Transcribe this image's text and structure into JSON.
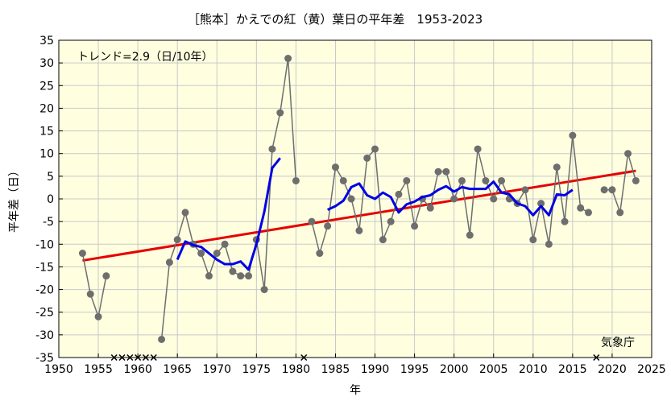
{
  "chart_data": {
    "type": "line",
    "title": "［熊本］かえでの紅（黄）葉日の平年差　1953-2023",
    "xlabel": "年",
    "ylabel": "平年差（日）",
    "xlim": [
      1950,
      2025
    ],
    "ylim": [
      -35,
      35
    ],
    "x_ticks": [
      1950,
      1955,
      1960,
      1965,
      1970,
      1975,
      1980,
      1985,
      1990,
      1995,
      2000,
      2005,
      2010,
      2015,
      2020,
      2025
    ],
    "y_ticks": [
      -35,
      -30,
      -25,
      -20,
      -15,
      -10,
      -5,
      0,
      5,
      10,
      15,
      20,
      25,
      30,
      35
    ],
    "grid": true,
    "annotations": {
      "trend_text": "トレンド=2.9（日/10年）",
      "source_text": "気象庁"
    },
    "colors": {
      "plot_bg": "#ffffe0",
      "grid": "#c8c8c8",
      "observed": "#6e6e6e",
      "moving_average": "#0000e6",
      "trend": "#e60000",
      "missing_marker": "#000000"
    },
    "series": [
      {
        "role": "observed",
        "points": [
          [
            1953,
            -12
          ],
          [
            1954,
            -21
          ],
          [
            1955,
            -26
          ],
          [
            1956,
            -17
          ],
          [
            1963,
            -31
          ],
          [
            1964,
            -14
          ],
          [
            1965,
            -9
          ],
          [
            1966,
            -3
          ],
          [
            1967,
            -10
          ],
          [
            1968,
            -12
          ],
          [
            1969,
            -17
          ],
          [
            1970,
            -12
          ],
          [
            1971,
            -10
          ],
          [
            1972,
            -16
          ],
          [
            1973,
            -17
          ],
          [
            1974,
            -17
          ],
          [
            1975,
            -9
          ],
          [
            1976,
            -20
          ],
          [
            1977,
            11
          ],
          [
            1978,
            19
          ],
          [
            1979,
            31
          ],
          [
            1980,
            4
          ],
          [
            1982,
            -5
          ],
          [
            1983,
            -12
          ],
          [
            1984,
            -6
          ],
          [
            1985,
            7
          ],
          [
            1986,
            4
          ],
          [
            1987,
            0
          ],
          [
            1988,
            -7
          ],
          [
            1989,
            9
          ],
          [
            1990,
            11
          ],
          [
            1991,
            -9
          ],
          [
            1992,
            -5
          ],
          [
            1993,
            1
          ],
          [
            1994,
            4
          ],
          [
            1995,
            -6
          ],
          [
            1996,
            0
          ],
          [
            1997,
            -2
          ],
          [
            1998,
            6
          ],
          [
            1999,
            6
          ],
          [
            2000,
            0
          ],
          [
            2001,
            4
          ],
          [
            2002,
            -8
          ],
          [
            2003,
            11
          ],
          [
            2004,
            4
          ],
          [
            2005,
            0
          ],
          [
            2006,
            4
          ],
          [
            2007,
            0
          ],
          [
            2008,
            -1
          ],
          [
            2009,
            2
          ],
          [
            2010,
            -9
          ],
          [
            2011,
            -1
          ],
          [
            2012,
            -10
          ],
          [
            2013,
            7
          ],
          [
            2014,
            -5
          ],
          [
            2015,
            14
          ],
          [
            2016,
            -2
          ],
          [
            2017,
            -3
          ],
          [
            2019,
            2
          ],
          [
            2020,
            2
          ],
          [
            2021,
            -3
          ],
          [
            2022,
            10
          ],
          [
            2023,
            4
          ]
        ]
      },
      {
        "role": "moving_average",
        "segments": [
          [
            [
              1965,
              -13.4
            ],
            [
              1966,
              -9.4
            ],
            [
              1967,
              -10.2
            ],
            [
              1968,
              -10.6
            ],
            [
              1969,
              -12.0
            ],
            [
              1970,
              -13.4
            ],
            [
              1971,
              -14.4
            ],
            [
              1972,
              -14.4
            ],
            [
              1973,
              -13.8
            ],
            [
              1974,
              -15.6
            ],
            [
              1975,
              -10.0
            ],
            [
              1976,
              -2.8
            ],
            [
              1977,
              6.8
            ],
            [
              1978,
              9.0
            ]
          ],
          [
            [
              1984,
              -2.4
            ],
            [
              1985,
              -1.6
            ],
            [
              1986,
              -0.4
            ],
            [
              1987,
              2.6
            ],
            [
              1988,
              3.4
            ],
            [
              1989,
              0.8
            ],
            [
              1990,
              0.0
            ],
            [
              1991,
              1.4
            ],
            [
              1992,
              0.4
            ],
            [
              1993,
              -3.0
            ],
            [
              1994,
              -1.2
            ],
            [
              1995,
              -0.6
            ],
            [
              1996,
              0.4
            ],
            [
              1997,
              0.8
            ],
            [
              1998,
              2.0
            ],
            [
              1999,
              2.8
            ],
            [
              2000,
              1.6
            ],
            [
              2001,
              2.6
            ],
            [
              2002,
              2.2
            ],
            [
              2003,
              2.2
            ],
            [
              2004,
              2.2
            ],
            [
              2005,
              3.8
            ],
            [
              2006,
              1.4
            ],
            [
              2007,
              1.0
            ],
            [
              2008,
              -1.0
            ],
            [
              2009,
              -1.6
            ],
            [
              2010,
              -3.6
            ],
            [
              2011,
              -1.6
            ],
            [
              2012,
              -3.6
            ],
            [
              2013,
              1.0
            ],
            [
              2014,
              0.8
            ],
            [
              2015,
              2.0
            ]
          ]
        ]
      },
      {
        "role": "trend",
        "points": [
          [
            1953,
            -13.6
          ],
          [
            2023,
            6.2
          ]
        ]
      }
    ],
    "missing_years": [
      1957,
      1958,
      1959,
      1960,
      1961,
      1962,
      1981,
      2018
    ]
  }
}
